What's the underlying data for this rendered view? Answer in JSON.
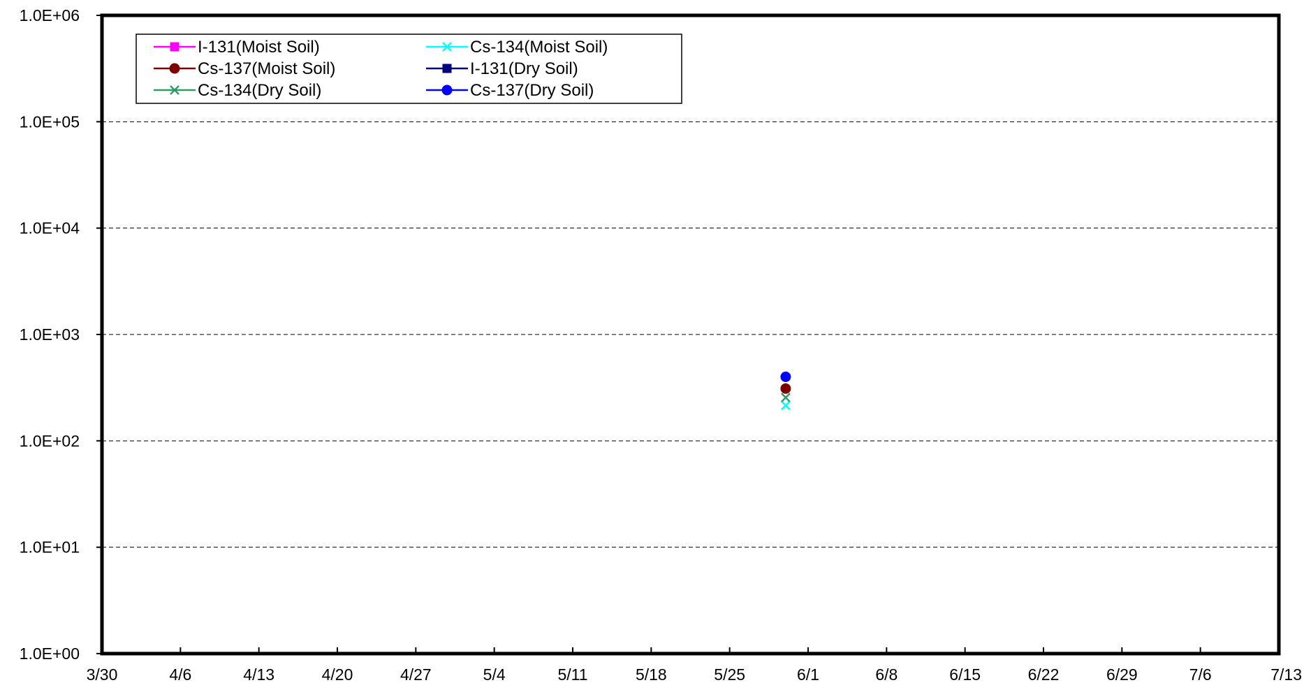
{
  "chart_data": {
    "type": "scatter",
    "title": "",
    "xlabel": "",
    "ylabel": "",
    "x_scale": "date",
    "y_scale": "log",
    "ylim": [
      1,
      1000000
    ],
    "xlim": [
      "2011-03-30",
      "2011-07-13"
    ],
    "x_tick_labels": [
      "3/30",
      "4/6",
      "4/13",
      "4/20",
      "4/27",
      "5/4",
      "5/11",
      "5/18",
      "5/25",
      "6/1",
      "6/8",
      "6/15",
      "6/22",
      "6/29",
      "7/6",
      "7/13"
    ],
    "y_tick_labels": [
      "1.0E+00",
      "1.0E+01",
      "1.0E+02",
      "1.0E+03",
      "1.0E+04",
      "1.0E+05",
      "1.0E+06"
    ],
    "grid": "horizontal-dashed",
    "legend_position": "top-left",
    "series": [
      {
        "name": "I-131(Moist Soil)",
        "color": "#FF00FF",
        "marker": "square",
        "points": []
      },
      {
        "name": "Cs-134(Moist Soil)",
        "color": "#00FFFF",
        "marker": "x",
        "points": [
          {
            "x": "2011-05-30",
            "y": 215
          }
        ]
      },
      {
        "name": "Cs-137(Moist Soil)",
        "color": "#800000",
        "marker": "circle",
        "points": [
          {
            "x": "2011-05-30",
            "y": 310
          }
        ]
      },
      {
        "name": "I-131(Dry Soil)",
        "color": "#000080",
        "marker": "square",
        "points": []
      },
      {
        "name": "Cs-134(Dry Soil)",
        "color": "#339966",
        "marker": "x",
        "points": [
          {
            "x": "2011-05-30",
            "y": 255
          }
        ]
      },
      {
        "name": "Cs-137(Dry Soil)",
        "color": "#0000FF",
        "marker": "circle",
        "points": [
          {
            "x": "2011-05-30",
            "y": 400
          }
        ]
      }
    ]
  }
}
